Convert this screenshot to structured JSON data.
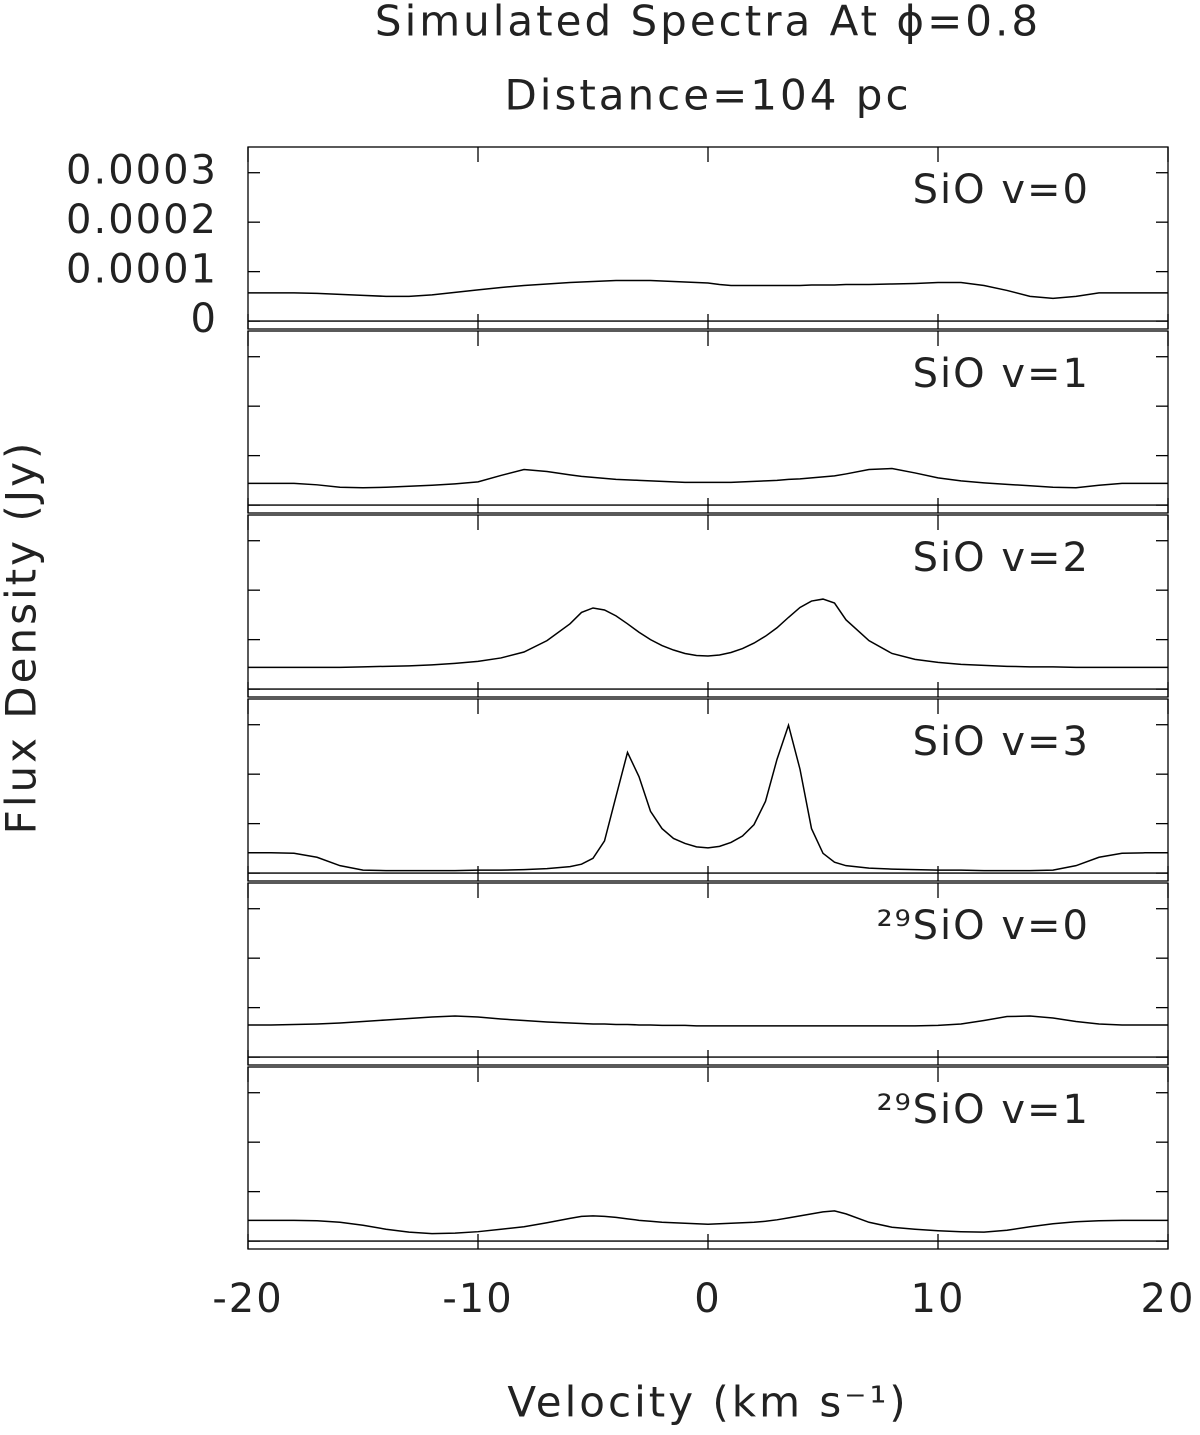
{
  "chart_data": {
    "type": "line",
    "stacked_panels": true,
    "zero_line": true,
    "title": "Simulated Spectra At ϕ=0.8",
    "subtitle": "Distance=104 pc",
    "xlabel": "Velocity (km s⁻¹)",
    "ylabel": "Flux Density (Jy)",
    "xlim": [
      -20,
      20
    ],
    "xticks": [
      -20,
      -10,
      0,
      10,
      20
    ],
    "ylim": [
      -1.6e-05,
      0.000352
    ],
    "yticks": [
      0,
      0.0001,
      0.0002,
      0.0003
    ],
    "x": [
      -20,
      -19,
      -18,
      -17,
      -16,
      -15,
      -14,
      -13,
      -12,
      -11,
      -10,
      -9,
      -8,
      -7,
      -6,
      -5.5,
      -5,
      -4.5,
      -4,
      -3.5,
      -3,
      -2.5,
      -2,
      -1.5,
      -1,
      -0.5,
      0,
      0.5,
      1,
      1.5,
      2,
      2.5,
      3,
      3.5,
      4,
      4.5,
      5,
      5.5,
      6,
      7,
      8,
      9,
      10,
      11,
      12,
      13,
      14,
      15,
      16,
      17,
      18,
      19,
      20
    ],
    "series": [
      {
        "name": "SiO v=0",
        "color": "#000000",
        "values": [
          5.7e-05,
          5.7e-05,
          5.7e-05,
          5.6e-05,
          5.4e-05,
          5.2e-05,
          5e-05,
          5e-05,
          5.3e-05,
          5.8e-05,
          6.3e-05,
          6.8e-05,
          7.2e-05,
          7.5e-05,
          7.8e-05,
          7.9e-05,
          8e-05,
          8.1e-05,
          8.2e-05,
          8.2e-05,
          8.2e-05,
          8.2e-05,
          8.1e-05,
          8e-05,
          7.9e-05,
          7.8e-05,
          7.7e-05,
          7.4e-05,
          7.2e-05,
          7.2e-05,
          7.2e-05,
          7.2e-05,
          7.2e-05,
          7.2e-05,
          7.2e-05,
          7.3e-05,
          7.3e-05,
          7.3e-05,
          7.4e-05,
          7.4e-05,
          7.5e-05,
          7.6e-05,
          7.8e-05,
          7.8e-05,
          7.2e-05,
          6.2e-05,
          5e-05,
          4.6e-05,
          5e-05,
          5.7e-05,
          5.7e-05,
          5.7e-05,
          5.7e-05
        ]
      },
      {
        "name": "SiO v=1",
        "color": "#000000",
        "values": [
          4.4e-05,
          4.4e-05,
          4.4e-05,
          4.1e-05,
          3.6e-05,
          3.5e-05,
          3.6e-05,
          3.8e-05,
          4e-05,
          4.3e-05,
          4.7e-05,
          6e-05,
          7.2e-05,
          6.8e-05,
          6.1e-05,
          5.8e-05,
          5.6e-05,
          5.4e-05,
          5.2e-05,
          5.1e-05,
          5e-05,
          4.9e-05,
          4.8e-05,
          4.7e-05,
          4.6e-05,
          4.6e-05,
          4.6e-05,
          4.6e-05,
          4.6e-05,
          4.7e-05,
          4.8e-05,
          4.9e-05,
          5e-05,
          5.2e-05,
          5.3e-05,
          5.5e-05,
          5.7e-05,
          5.9e-05,
          6.3e-05,
          7.2e-05,
          7.4e-05,
          6.5e-05,
          5.5e-05,
          4.9e-05,
          4.5e-05,
          4.2e-05,
          3.9e-05,
          3.6e-05,
          3.5e-05,
          4e-05,
          4.4e-05,
          4.4e-05,
          4.4e-05
        ]
      },
      {
        "name": "SiO v=2",
        "color": "#000000",
        "values": [
          4.4e-05,
          4.4e-05,
          4.4e-05,
          4.4e-05,
          4.4e-05,
          4.5e-05,
          4.6e-05,
          4.7e-05,
          4.9e-05,
          5.2e-05,
          5.6e-05,
          6.3e-05,
          7.5e-05,
          9.8e-05,
          0.000132,
          0.000155,
          0.000164,
          0.00016,
          0.000148,
          0.000132,
          0.000115,
          0.0001,
          8.8e-05,
          7.9e-05,
          7.2e-05,
          6.8e-05,
          6.7e-05,
          6.9e-05,
          7.4e-05,
          8.2e-05,
          9.3e-05,
          0.000107,
          0.000124,
          0.000145,
          0.000165,
          0.000178,
          0.000182,
          0.000174,
          0.00014,
          9.8e-05,
          7.2e-05,
          6e-05,
          5.4e-05,
          5e-05,
          4.8e-05,
          4.6e-05,
          4.5e-05,
          4.5e-05,
          4.4e-05,
          4.4e-05,
          4.4e-05,
          4.4e-05,
          4.4e-05
        ]
      },
      {
        "name": "SiO v=3",
        "color": "#000000",
        "values": [
          4.1e-05,
          4.1e-05,
          4e-05,
          3.2e-05,
          1.5e-05,
          6e-06,
          5e-06,
          5e-06,
          5e-06,
          5e-06,
          6e-06,
          6e-06,
          7e-06,
          9e-06,
          1.3e-05,
          1.8e-05,
          3e-05,
          6.5e-05,
          0.000155,
          0.000244,
          0.000195,
          0.000125,
          9e-05,
          7e-05,
          6e-05,
          5.3e-05,
          5.1e-05,
          5.4e-05,
          6.2e-05,
          7.5e-05,
          9.8e-05,
          0.000145,
          0.00023,
          0.000299,
          0.00021,
          9e-05,
          4e-05,
          2.2e-05,
          1.5e-05,
          1e-05,
          8e-06,
          7e-06,
          6e-06,
          6e-06,
          5e-06,
          5e-06,
          5e-06,
          6e-06,
          1.5e-05,
          3.2e-05,
          4e-05,
          4.1e-05,
          4.1e-05
        ]
      },
      {
        "name": "²⁹SiO v=0",
        "color": "#000000",
        "values": [
          6.5e-05,
          6.5e-05,
          6.6e-05,
          6.7e-05,
          6.9e-05,
          7.2e-05,
          7.5e-05,
          7.8e-05,
          8.1e-05,
          8.3e-05,
          8.1e-05,
          7.7e-05,
          7.4e-05,
          7.1e-05,
          6.9e-05,
          6.8e-05,
          6.7e-05,
          6.7e-05,
          6.6e-05,
          6.6e-05,
          6.5e-05,
          6.5e-05,
          6.4e-05,
          6.4e-05,
          6.4e-05,
          6.3e-05,
          6.3e-05,
          6.3e-05,
          6.3e-05,
          6.3e-05,
          6.3e-05,
          6.3e-05,
          6.3e-05,
          6.3e-05,
          6.3e-05,
          6.3e-05,
          6.3e-05,
          6.3e-05,
          6.3e-05,
          6.3e-05,
          6.3e-05,
          6.3e-05,
          6.4e-05,
          6.7e-05,
          7.4e-05,
          8.2e-05,
          8.3e-05,
          7.9e-05,
          7.2e-05,
          6.7e-05,
          6.5e-05,
          6.5e-05,
          6.5e-05
        ]
      },
      {
        "name": "²⁹SiO v=1",
        "color": "#000000",
        "values": [
          4.2e-05,
          4.2e-05,
          4.2e-05,
          4.1e-05,
          3.8e-05,
          3.2e-05,
          2.4e-05,
          1.8e-05,
          1.5e-05,
          1.6e-05,
          1.9e-05,
          2.4e-05,
          2.9e-05,
          3.7e-05,
          4.6e-05,
          5e-05,
          5.1e-05,
          5e-05,
          4.8e-05,
          4.5e-05,
          4.2e-05,
          4e-05,
          3.8e-05,
          3.7e-05,
          3.6e-05,
          3.5e-05,
          3.4e-05,
          3.5e-05,
          3.6e-05,
          3.7e-05,
          3.8e-05,
          4e-05,
          4.3e-05,
          4.7e-05,
          5.1e-05,
          5.5e-05,
          5.9e-05,
          6.1e-05,
          5.5e-05,
          3.8e-05,
          2.8e-05,
          2.4e-05,
          2.1e-05,
          1.9e-05,
          1.8e-05,
          2.2e-05,
          2.9e-05,
          3.5e-05,
          3.9e-05,
          4.1e-05,
          4.2e-05,
          4.2e-05,
          4.2e-05
        ]
      }
    ]
  }
}
